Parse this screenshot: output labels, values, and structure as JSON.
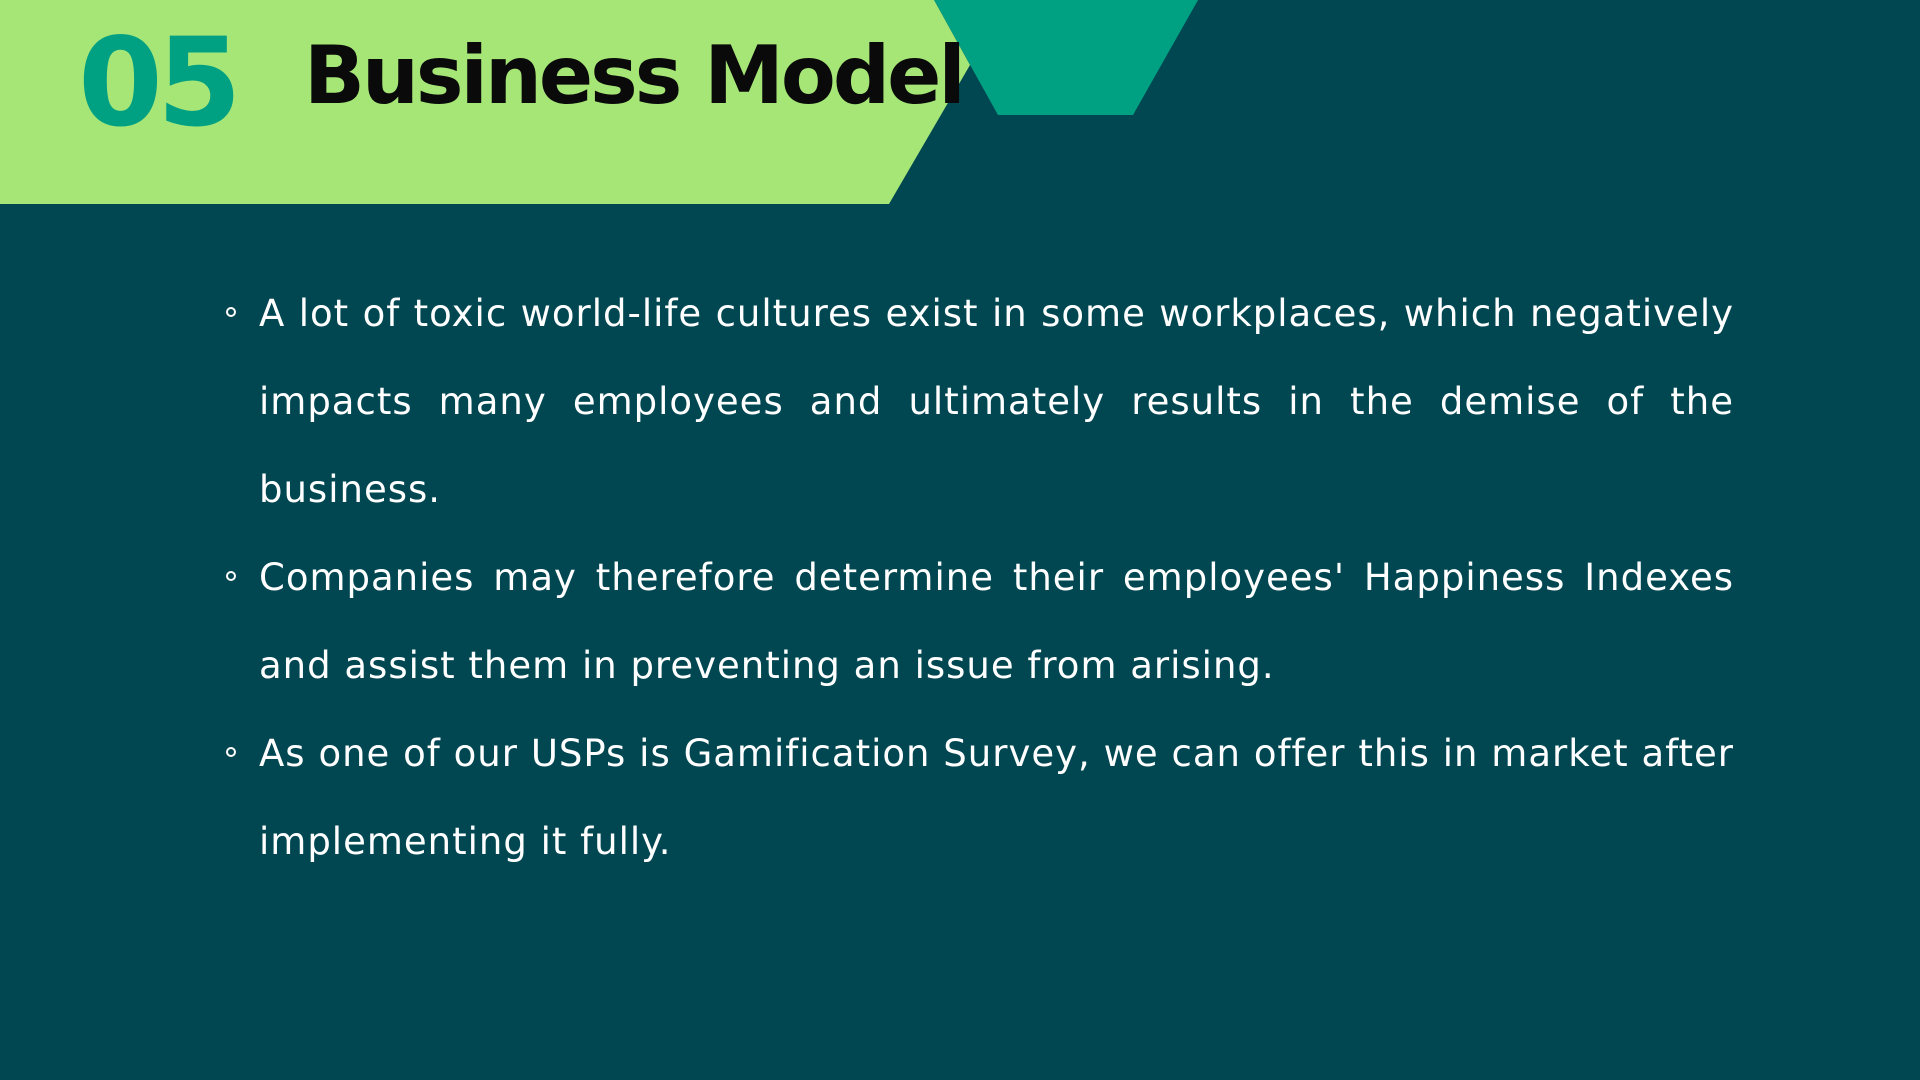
{
  "slide": {
    "number": "05",
    "title": "Business Model",
    "colors": {
      "background": "#014751",
      "header_band": "#a6e677",
      "accent": "#00a183",
      "title_text": "#0a0a0a",
      "body_text": "#ffffff"
    }
  },
  "bullets": [
    {
      "text": "A lot of toxic world-life cultures exist in some workplaces, which negatively impacts many employees and ultimately results in the demise of the business."
    },
    {
      "text": "Companies may therefore determine their employees' Happiness Indexes and assist them in preventing an issue from arising."
    },
    {
      "text": "As one of our USPs is Gamification Survey, we can offer this in market after implementing it fully."
    }
  ]
}
